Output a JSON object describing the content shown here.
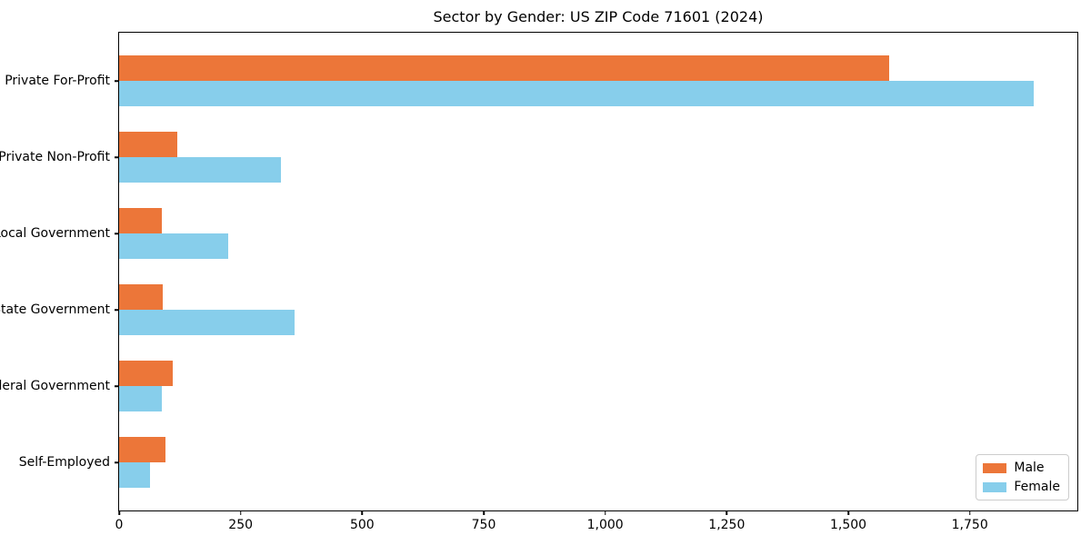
{
  "chart_data": {
    "type": "bar",
    "orientation": "horizontal",
    "title": "Sector by Gender: US ZIP Code 71601 (2024)",
    "categories": [
      "Private For-Profit",
      "Private Non-Profit",
      "Local Government",
      "State Government",
      "Federal Government",
      "Self-Employed"
    ],
    "series": [
      {
        "name": "Male",
        "color": "#ec7639",
        "values": [
          1584,
          119,
          88,
          90,
          111,
          96
        ]
      },
      {
        "name": "Female",
        "color": "#87ceeb",
        "values": [
          1881,
          333,
          224,
          360,
          87,
          63
        ]
      }
    ],
    "xlabel": "",
    "ylabel": "",
    "xlim": [
      0,
      1975
    ],
    "xticks": [
      0,
      250,
      500,
      750,
      1000,
      1250,
      1500,
      1750
    ],
    "xtick_labels": [
      "0",
      "250",
      "500",
      "750",
      "1,000",
      "1,250",
      "1,500",
      "1,750"
    ],
    "grid": false,
    "legend": {
      "position": "lower right",
      "entries": [
        "Male",
        "Female"
      ]
    }
  }
}
